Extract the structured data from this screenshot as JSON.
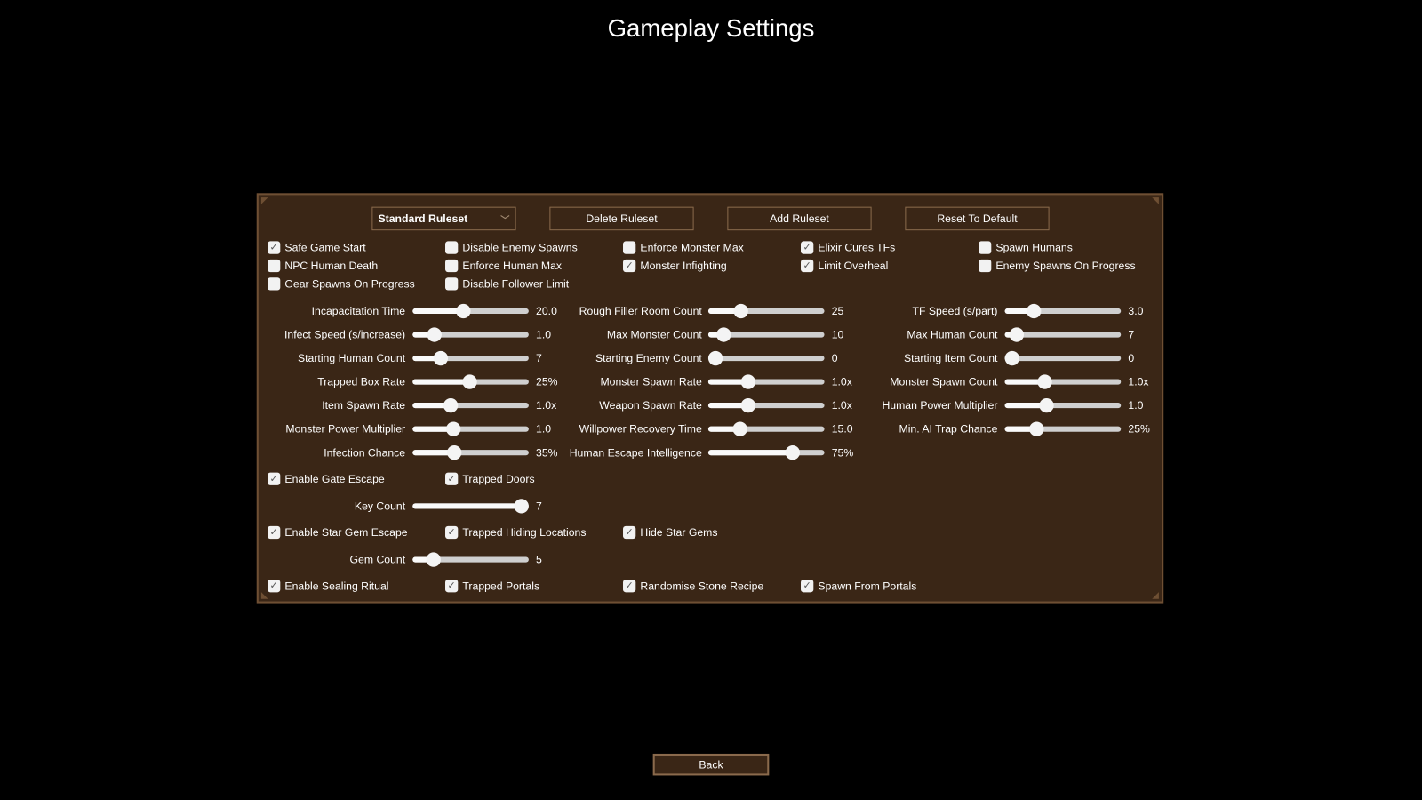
{
  "title": "Gameplay Settings",
  "toolbar": {
    "ruleset_dropdown": "Standard Ruleset",
    "delete_label": "Delete Ruleset",
    "add_label": "Add Ruleset",
    "reset_label": "Reset To Default"
  },
  "checkboxes_top": [
    {
      "label": "Safe Game Start",
      "checked": true
    },
    {
      "label": "Disable Enemy Spawns",
      "checked": false
    },
    {
      "label": "Enforce Monster Max",
      "checked": false
    },
    {
      "label": "Elixir Cures TFs",
      "checked": true
    },
    {
      "label": "Spawn Humans",
      "checked": false
    },
    {
      "label": "NPC Human Death",
      "checked": false
    },
    {
      "label": "Enforce Human Max",
      "checked": false
    },
    {
      "label": "Monster Infighting",
      "checked": true
    },
    {
      "label": "Limit Overheal",
      "checked": true
    },
    {
      "label": "Enemy Spawns On Progress",
      "checked": false
    },
    {
      "label": "Gear Spawns On Progress",
      "checked": false
    },
    {
      "label": "Disable Follower Limit",
      "checked": false
    }
  ],
  "sliders": [
    [
      {
        "label": "Incapacitation Time",
        "value": "20.0",
        "level": 0.44
      },
      {
        "label": "Infect Speed (s/increase)",
        "value": "1.0",
        "level": 0.19
      },
      {
        "label": "Starting Human Count",
        "value": "7",
        "level": 0.24
      },
      {
        "label": "Trapped Box Rate",
        "value": "25%",
        "level": 0.49
      },
      {
        "label": "Item Spawn Rate",
        "value": "1.0x",
        "level": 0.33
      },
      {
        "label": "Monster Power Multiplier",
        "value": "1.0",
        "level": 0.35
      },
      {
        "label": "Infection Chance",
        "value": "35%",
        "level": 0.36
      }
    ],
    [
      {
        "label": "Rough Filler Room Count",
        "value": "25",
        "level": 0.28
      },
      {
        "label": "Max Monster Count",
        "value": "10",
        "level": 0.13
      },
      {
        "label": "Starting Enemy Count",
        "value": "0",
        "level": 0.0
      },
      {
        "label": "Monster Spawn Rate",
        "value": "1.0x",
        "level": 0.34
      },
      {
        "label": "Weapon Spawn Rate",
        "value": "1.0x",
        "level": 0.34
      },
      {
        "label": "Willpower Recovery Time",
        "value": "15.0",
        "level": 0.27
      },
      {
        "label": "Human Escape Intelligence",
        "value": "75%",
        "level": 0.73
      }
    ],
    [
      {
        "label": "TF Speed (s/part)",
        "value": "3.0",
        "level": 0.25
      },
      {
        "label": "Max Human Count",
        "value": "7",
        "level": 0.1
      },
      {
        "label": "Starting Item Count",
        "value": "0",
        "level": 0.0
      },
      {
        "label": "Monster Spawn Count",
        "value": "1.0x",
        "level": 0.34
      },
      {
        "label": "Human Power Multiplier",
        "value": "1.0",
        "level": 0.36
      },
      {
        "label": "Min. AI Trap Chance",
        "value": "25%",
        "level": 0.27
      }
    ]
  ],
  "escape_sections": [
    {
      "checkboxes": [
        {
          "label": "Enable Gate Escape",
          "checked": true
        },
        {
          "label": "Trapped Doors",
          "checked": true
        }
      ],
      "slider": {
        "label": "Key Count",
        "value": "7",
        "level": 0.95
      }
    },
    {
      "checkboxes": [
        {
          "label": "Enable Star Gem Escape",
          "checked": true
        },
        {
          "label": "Trapped Hiding Locations",
          "checked": true
        },
        {
          "label": "Hide Star Gems",
          "checked": true
        }
      ],
      "slider": {
        "label": "Gem Count",
        "value": "5",
        "level": 0.18
      }
    },
    {
      "checkboxes": [
        {
          "label": "Enable Sealing Ritual",
          "checked": true
        },
        {
          "label": "Trapped Portals",
          "checked": true
        },
        {
          "label": "Randomise Stone Recipe",
          "checked": true
        },
        {
          "label": "Spawn From Portals",
          "checked": true
        }
      ]
    }
  ],
  "back_label": "Back",
  "colors": {
    "panel_bg": "#3a2616",
    "panel_border": "#6e4f33",
    "button_border": "#8a6a4c"
  }
}
